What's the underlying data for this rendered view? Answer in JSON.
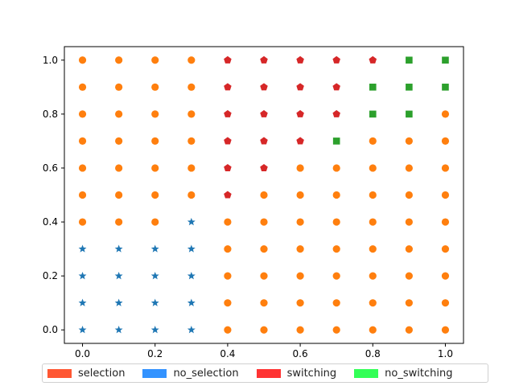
{
  "chart_data": {
    "type": "scatter",
    "title": "",
    "xlabel": "",
    "ylabel": "",
    "xlim": [
      -0.05,
      1.05
    ],
    "ylim": [
      -0.05,
      1.05
    ],
    "xticks": [
      "0.0",
      "0.2",
      "0.4",
      "0.6",
      "0.8",
      "1.0"
    ],
    "yticks": [
      "0.0",
      "0.2",
      "0.4",
      "0.6",
      "0.8",
      "1.0"
    ],
    "grid": false,
    "grid_points": {
      "x": [
        0.0,
        0.1,
        0.2,
        0.3,
        0.4,
        0.5,
        0.6,
        0.7,
        0.8,
        0.9,
        1.0
      ],
      "y": [
        0.0,
        0.1,
        0.2,
        0.3,
        0.4,
        0.5,
        0.6,
        0.7,
        0.8,
        0.9,
        1.0
      ]
    },
    "marker_classes": {
      "star": {
        "marker": "star",
        "color": "#1f77b4"
      },
      "circle": {
        "marker": "circle",
        "color": "#ff7f0e"
      },
      "pentagon": {
        "marker": "pentagon",
        "color": "#d62728"
      },
      "square": {
        "marker": "square",
        "color": "#2ca02c"
      }
    },
    "class_grid_rows_top_to_bottom": [
      "CCCCPPPPPSS",
      "CCCCPPPPSSS",
      "CCCCPPPPSSC",
      "CCCCPPPSCCC",
      "CCCCPPCCCCC",
      "CCCCPCCCCCC",
      "CCCTCCCCCCC",
      "TTTTCCCCCCC",
      "TTTTCCCCCCC",
      "TTTTCCCCCCC",
      "TTTTCCCCCCC"
    ],
    "class_codes": {
      "C": "circle",
      "T": "star",
      "P": "pentagon",
      "S": "square"
    },
    "legend": {
      "position": "bottom",
      "entries": [
        {
          "label": "selection",
          "color": "#ff5733"
        },
        {
          "label": "no_selection",
          "color": "#3393ff"
        },
        {
          "label": "switching",
          "color": "#ff3333"
        },
        {
          "label": "no_switching",
          "color": "#33ff57"
        }
      ]
    }
  }
}
